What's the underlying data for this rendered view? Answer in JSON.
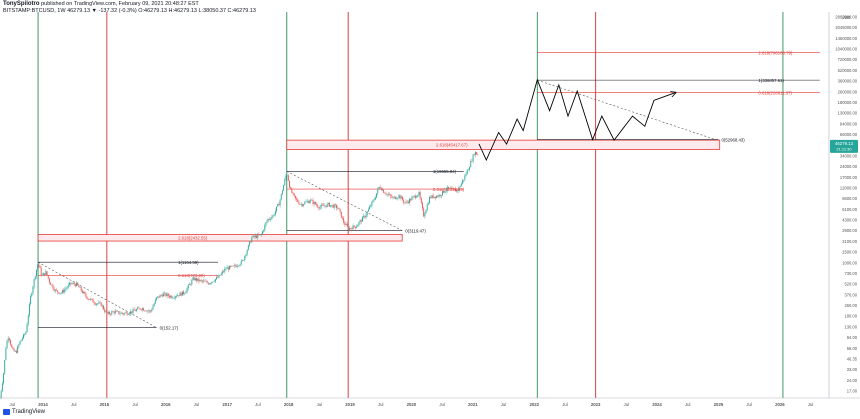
{
  "header": {
    "author": "TonySpilotro",
    "published": "published on TradingView.com, February 09, 2021 20:48:27 EST",
    "symbol_line": "BITSTAMP:BTCUSD, 1W 46279.13 ▼ -137.32 (-0.3%) O:46279.13 H:46279.13 L:38050.37 C:46279.13"
  },
  "branding": {
    "logo_text": "TradingView"
  },
  "colors": {
    "candle_up": "#26a69a",
    "candle_down": "#ef5350",
    "vline_green": "#2e8b57",
    "vline_red": "#d32f2f",
    "fib_red": "#e53935",
    "dark": "#131722",
    "price_label_bg": "#26a69a"
  },
  "price_axis": {
    "unit_label": "USD",
    "ticks": [
      "2807000.00",
      "2045000.00",
      "1460000.00",
      "1040000.00",
      "720000.00",
      "520000.00",
      "360000.00",
      "260000.00",
      "180000.00",
      "130000.00",
      "94000.00",
      "66000.00",
      "46000.00",
      "34000.00",
      "24000.00",
      "17000.00",
      "12000.00",
      "8600.00",
      "6100.00",
      "4300.00",
      "2900.00",
      "2100.00",
      "1500.00",
      "1000.00",
      "730.00",
      "520.00",
      "370.00",
      "260.00",
      "180.00",
      "130.00",
      "94.00",
      "66.00",
      "46.35",
      "33.00",
      "24.00",
      "17.00"
    ],
    "current_price": "46279.13",
    "current_sub": "21:11:30"
  },
  "time_axis": {
    "ticks": [
      "Jul",
      "2014",
      "Jul",
      "2015",
      "Jul",
      "2016",
      "Jul",
      "2017",
      "Jul",
      "2018",
      "Jul",
      "2019",
      "Jul",
      "2020",
      "Jul",
      "2021",
      "Jul",
      "2022",
      "Jul",
      "2023",
      "Jul",
      "2024",
      "Jul",
      "2025",
      "Jul",
      "2026",
      "Jul"
    ]
  },
  "annotations": {
    "fib_2014_top": "1(1164.59)",
    "fib_2014_mid": "0.618(773.08)",
    "fib_2014_low": "0(152.17)",
    "fib_2018_ext": "2.618(2432.55)",
    "fib_2018_top": "1(19655.84)",
    "fib_2018_mid": "0.618(11338.95)",
    "fib_2018_low": "0(3119.47)",
    "fib_2021_ext": "2.618(45417.67)",
    "fib_2022_ext": "2.618(796188.79)",
    "fib_2022_top": "1(336857.61)",
    "fib_2022_mid": "0.618(228611.37)",
    "fib_2022_low": "0(52968.43)"
  },
  "chart_data": {
    "type": "candlestick",
    "title": "BITSTAMP:BTCUSD, 1W",
    "scale": "log",
    "ylim": [
      17,
      2807000
    ],
    "xlim": [
      2013.3,
      2026.8
    ],
    "grid": false,
    "price_series": [
      [
        2013.3,
        17
      ],
      [
        2013.36,
        38
      ],
      [
        2013.4,
        90
      ],
      [
        2013.44,
        120
      ],
      [
        2013.5,
        75
      ],
      [
        2013.56,
        70
      ],
      [
        2013.63,
        100
      ],
      [
        2013.72,
        130
      ],
      [
        2013.8,
        400
      ],
      [
        2013.86,
        700
      ],
      [
        2013.92,
        1150
      ],
      [
        2013.98,
        760
      ],
      [
        2014.05,
        850
      ],
      [
        2014.1,
        650
      ],
      [
        2014.2,
        480
      ],
      [
        2014.3,
        450
      ],
      [
        2014.45,
        600
      ],
      [
        2014.55,
        580
      ],
      [
        2014.7,
        400
      ],
      [
        2014.85,
        330
      ],
      [
        2014.95,
        310
      ],
      [
        2015.04,
        230
      ],
      [
        2015.15,
        250
      ],
      [
        2015.3,
        235
      ],
      [
        2015.45,
        250
      ],
      [
        2015.6,
        280
      ],
      [
        2015.75,
        250
      ],
      [
        2015.85,
        380
      ],
      [
        2015.95,
        430
      ],
      [
        2016.1,
        400
      ],
      [
        2016.3,
        450
      ],
      [
        2016.45,
        700
      ],
      [
        2016.55,
        650
      ],
      [
        2016.7,
        610
      ],
      [
        2016.85,
        720
      ],
      [
        2016.98,
        960
      ],
      [
        2017.1,
        1000
      ],
      [
        2017.25,
        1200
      ],
      [
        2017.4,
        2500
      ],
      [
        2017.55,
        2700
      ],
      [
        2017.65,
        4300
      ],
      [
        2017.75,
        5000
      ],
      [
        2017.85,
        7500
      ],
      [
        2017.93,
        14000
      ],
      [
        2017.97,
        19000
      ],
      [
        2018.03,
        11000
      ],
      [
        2018.1,
        8500
      ],
      [
        2018.2,
        7000
      ],
      [
        2018.35,
        8000
      ],
      [
        2018.5,
        6500
      ],
      [
        2018.65,
        7000
      ],
      [
        2018.8,
        6400
      ],
      [
        2018.9,
        4000
      ],
      [
        2018.97,
        3300
      ],
      [
        2019.1,
        3600
      ],
      [
        2019.25,
        5000
      ],
      [
        2019.4,
        8500
      ],
      [
        2019.48,
        12500
      ],
      [
        2019.55,
        10500
      ],
      [
        2019.7,
        8500
      ],
      [
        2019.8,
        9200
      ],
      [
        2019.9,
        7300
      ],
      [
        2020.02,
        8600
      ],
      [
        2020.12,
        10000
      ],
      [
        2020.2,
        5000
      ],
      [
        2020.3,
        8800
      ],
      [
        2020.45,
        9300
      ],
      [
        2020.58,
        11500
      ],
      [
        2020.75,
        10800
      ],
      [
        2020.85,
        15500
      ],
      [
        2020.95,
        24000
      ],
      [
        2021.03,
        36000
      ],
      [
        2021.08,
        33000
      ],
      [
        2021.1,
        46279
      ]
    ],
    "projection": [
      [
        2021.1,
        46279
      ],
      [
        2021.22,
        28000
      ],
      [
        2021.42,
        66000
      ],
      [
        2021.55,
        46000
      ],
      [
        2021.72,
        100000
      ],
      [
        2021.82,
        70000
      ],
      [
        2022.05,
        340000
      ],
      [
        2022.25,
        130000
      ],
      [
        2022.4,
        290000
      ],
      [
        2022.55,
        110000
      ],
      [
        2022.7,
        240000
      ],
      [
        2022.95,
        52968
      ],
      [
        2023.1,
        110000
      ],
      [
        2023.3,
        52000
      ],
      [
        2023.6,
        110000
      ],
      [
        2023.8,
        80000
      ],
      [
        2023.95,
        180000
      ],
      [
        2024.3,
        228611
      ]
    ],
    "trendlines": [
      [
        [
          2013.92,
          1164
        ],
        [
          2015.85,
          152
        ]
      ],
      [
        [
          2017.97,
          19655
        ],
        [
          2019.85,
          3119
        ]
      ],
      [
        [
          2022.05,
          336857
        ],
        [
          2024.95,
          52968
        ]
      ]
    ],
    "fib_lines": [
      {
        "level": 1164.59,
        "from": 2013.92,
        "to": 2016.85
      },
      {
        "level": 773.08,
        "from": 2013.92,
        "to": 2016.85
      },
      {
        "level": 152.17,
        "from": 2013.92,
        "to": 2015.85
      },
      {
        "level": 19655.84,
        "from": 2017.97,
        "to": 2020.85
      },
      {
        "level": 11338.95,
        "from": 2017.97,
        "to": 2020.85
      },
      {
        "level": 3119.47,
        "from": 2017.97,
        "to": 2019.85
      },
      {
        "level": 336857.61,
        "from": 2022.05,
        "to": 2026.65
      },
      {
        "level": 228611.37,
        "from": 2022.05,
        "to": 2026.65
      },
      {
        "level": 796188.79,
        "from": 2022.05,
        "to": 2026.65
      },
      {
        "level": 52968.43,
        "from": 2022.05,
        "to": 2025.0
      }
    ],
    "zones": [
      {
        "from": 2013.92,
        "to": 2019.85,
        "low": 2250,
        "high": 2750
      },
      {
        "from": 2017.97,
        "to": 2025.02,
        "low": 39000,
        "high": 52000
      }
    ],
    "vlines": {
      "green": [
        2013.92,
        2017.97,
        2022.05,
        2026.05
      ],
      "red": [
        2015.04,
        2018.97,
        2023.0
      ]
    }
  }
}
